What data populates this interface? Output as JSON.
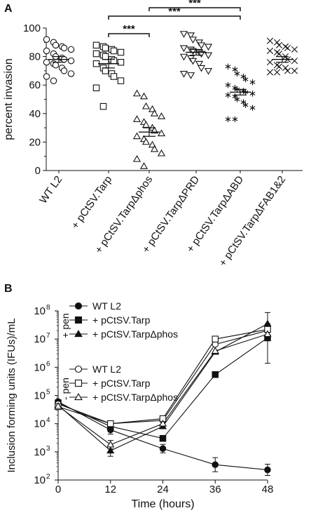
{
  "chart_data": [
    {
      "panel": "A",
      "type": "scatter",
      "ylabel": "percent invasion",
      "ylim": [
        0,
        100
      ],
      "yticks": [
        0,
        20,
        40,
        60,
        80,
        100
      ],
      "categories": [
        "WT  L2",
        "+ pCtSV.Tarp",
        "+ pCtSV.TarpΔphos",
        "+ pCtSV.TarpΔPRD",
        "+ pCtSV.TarpΔABD",
        "+ pCtSV.TarpΔFAB1&2"
      ],
      "markers": [
        "circle",
        "square",
        "triangle-up",
        "triangle-down",
        "asterisk",
        "x"
      ],
      "series": [
        {
          "mean": 78,
          "sem": 2,
          "values": [
            92,
            90,
            88,
            87,
            86,
            85,
            84,
            82,
            80,
            79,
            78,
            77,
            76,
            75,
            74,
            72,
            70,
            68,
            66,
            63
          ]
        },
        {
          "mean": 75,
          "sem": 3,
          "values": [
            88,
            87,
            86,
            85,
            84,
            83,
            82,
            81,
            80,
            78,
            77,
            76,
            75,
            72,
            70,
            68,
            66,
            63,
            58,
            45
          ]
        },
        {
          "mean": 27,
          "sem": 3,
          "values": [
            54,
            52,
            45,
            43,
            40,
            38,
            36,
            34,
            32,
            30,
            28,
            26,
            24,
            22,
            20,
            18,
            15,
            12,
            8,
            3
          ]
        },
        {
          "mean": 83,
          "sem": 2,
          "values": [
            96,
            95,
            92,
            90,
            88,
            87,
            86,
            85,
            84,
            83,
            82,
            81,
            80,
            79,
            77,
            75,
            72,
            70,
            68,
            67
          ]
        },
        {
          "mean": 55,
          "sem": 2,
          "values": [
            73,
            71,
            68,
            66,
            64,
            62,
            60,
            58,
            57,
            56,
            55,
            54,
            53,
            52,
            50,
            48,
            46,
            44,
            36,
            36
          ]
        },
        {
          "mean": 78,
          "sem": 2,
          "values": [
            91,
            90,
            88,
            87,
            86,
            85,
            84,
            83,
            82,
            80,
            78,
            77,
            76,
            74,
            73,
            72,
            70,
            70,
            69,
            69
          ]
        }
      ],
      "significance": [
        {
          "from": 1,
          "to": 2,
          "label": "***"
        },
        {
          "from": 1,
          "to": 4,
          "label": "***"
        },
        {
          "from": 2,
          "to": 4,
          "label": "***"
        }
      ]
    },
    {
      "panel": "B",
      "type": "line",
      "xlabel": "Time (hours)",
      "ylabel": "Inclusion forming units (IFUs)/mL",
      "x": [
        0,
        12,
        24,
        36,
        48
      ],
      "xticks": [
        "0",
        "12",
        "24",
        "36",
        "48"
      ],
      "yscale": "log",
      "ylim": [
        100,
        100000000
      ],
      "yticks": [
        {
          "base": "10",
          "exp": "2"
        },
        {
          "base": "10",
          "exp": "3"
        },
        {
          "base": "10",
          "exp": "4"
        },
        {
          "base": "10",
          "exp": "5"
        },
        {
          "base": "10",
          "exp": "6"
        },
        {
          "base": "10",
          "exp": "7"
        },
        {
          "base": "10",
          "exp": "8"
        }
      ],
      "group_labels": [
        "+ pen",
        "- pen"
      ],
      "series": [
        {
          "name": "WT L2",
          "group": "+ pen",
          "marker": "circle",
          "fill": "filled",
          "values": [
            60000,
            6000,
            1300,
            350,
            230
          ],
          "errors": [
            0,
            0.15,
            0.15,
            0.25,
            0.2
          ]
        },
        {
          "name": "+ pCtSV.Tarp",
          "group": "+ pen",
          "marker": "square",
          "fill": "filled",
          "values": [
            55000,
            8000,
            3000,
            550000,
            11000000
          ],
          "errors": [
            0,
            0,
            0,
            0,
            0.9
          ]
        },
        {
          "name": "+ pCtSV.TarpΔphos",
          "group": "+ pen",
          "marker": "triangle",
          "fill": "filled",
          "values": [
            45000,
            1100,
            8000,
            3500000,
            35000000
          ],
          "errors": [
            0,
            0.2,
            0,
            0,
            0
          ]
        },
        {
          "name": "WT L2",
          "group": "- pen",
          "marker": "circle",
          "fill": "open",
          "values": [
            50000,
            10000,
            13000,
            6500000,
            20000000
          ],
          "errors": [
            0,
            0,
            0,
            0,
            0.2
          ]
        },
        {
          "name": "+ pCtSV.Tarp",
          "group": "- pen",
          "marker": "square",
          "fill": "open",
          "values": [
            40000,
            10000,
            15000,
            10000000,
            22000000
          ],
          "errors": [
            0,
            0,
            0,
            0,
            0.2
          ]
        },
        {
          "name": "+ pCtSV.TarpΔphos",
          "group": "- pen",
          "marker": "triangle",
          "fill": "open",
          "values": [
            42000,
            1800,
            10000,
            3800000,
            15000000
          ],
          "errors": [
            0,
            0.15,
            0,
            0,
            0
          ]
        }
      ]
    }
  ]
}
